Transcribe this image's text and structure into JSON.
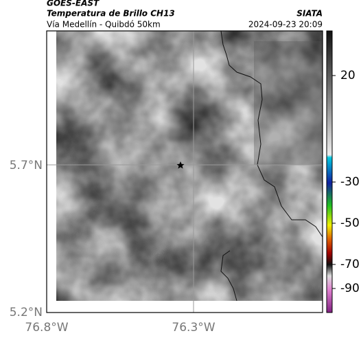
{
  "header": {
    "source": "GOES-EAST",
    "title": "Temperatura de Brillo CH13",
    "subtitle": "Vía Medellín - Quibdó 50km",
    "brand": "SIATA",
    "timestamp": "2024-09-23 20:09"
  },
  "map": {
    "y_labels": [
      "5.7°N",
      "5.2°N"
    ],
    "x_labels": [
      "76.8°W",
      "76.3°W"
    ]
  },
  "colorbar": {
    "ticks": [
      20,
      -30,
      -50,
      -70,
      -90
    ]
  }
}
